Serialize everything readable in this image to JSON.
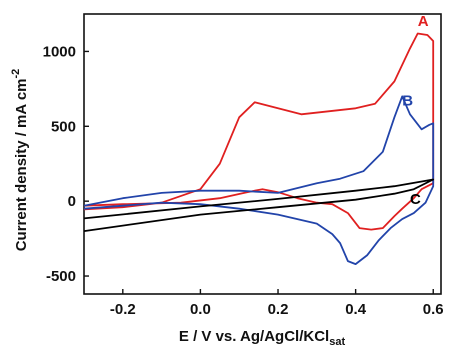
{
  "chart_data": {
    "type": "line",
    "title": "",
    "xlabel": "E / V vs. Ag/AgCl/KCl",
    "xlabel_sub": "sat",
    "ylabel": "Current density / mA cm",
    "ylabel_sup": "-2",
    "xlim": [
      -0.3,
      0.62
    ],
    "ylim": [
      -620,
      1250
    ],
    "xticks": [
      -0.2,
      0.0,
      0.2,
      0.4,
      0.6
    ],
    "xtick_labels": [
      "-0.2",
      "0.0",
      "0.2",
      "0.4",
      "0.6"
    ],
    "yticks": [
      -500,
      0,
      500,
      1000
    ],
    "ytick_labels": [
      "-500",
      "0",
      "500",
      "1000"
    ],
    "grid": false,
    "series": [
      {
        "name": "A",
        "color": "#e02020",
        "label_at": [
          0.56,
          1170
        ],
        "points": [
          [
            -0.3,
            -55
          ],
          [
            -0.2,
            -40
          ],
          [
            -0.1,
            -10
          ],
          [
            0.0,
            80
          ],
          [
            0.05,
            250
          ],
          [
            0.1,
            560
          ],
          [
            0.14,
            660
          ],
          [
            0.2,
            620
          ],
          [
            0.26,
            580
          ],
          [
            0.33,
            600
          ],
          [
            0.4,
            620
          ],
          [
            0.45,
            650
          ],
          [
            0.5,
            800
          ],
          [
            0.54,
            1020
          ],
          [
            0.56,
            1120
          ],
          [
            0.585,
            1110
          ],
          [
            0.6,
            1070
          ],
          [
            0.6,
            120
          ],
          [
            0.57,
            80
          ],
          [
            0.55,
            20
          ],
          [
            0.52,
            -50
          ],
          [
            0.5,
            -100
          ],
          [
            0.47,
            -180
          ],
          [
            0.44,
            -190
          ],
          [
            0.41,
            -180
          ],
          [
            0.38,
            -80
          ],
          [
            0.34,
            -20
          ],
          [
            0.3,
            -10
          ],
          [
            0.25,
            20
          ],
          [
            0.2,
            60
          ],
          [
            0.16,
            80
          ],
          [
            0.12,
            60
          ],
          [
            0.05,
            20
          ],
          [
            -0.05,
            -10
          ],
          [
            -0.2,
            -20
          ],
          [
            -0.3,
            -30
          ]
        ]
      },
      {
        "name": "B",
        "color": "#2244aa",
        "label_at": [
          0.52,
          640
        ],
        "points": [
          [
            -0.3,
            -30
          ],
          [
            -0.2,
            20
          ],
          [
            -0.1,
            55
          ],
          [
            0.0,
            70
          ],
          [
            0.1,
            70
          ],
          [
            0.2,
            55
          ],
          [
            0.3,
            120
          ],
          [
            0.36,
            150
          ],
          [
            0.42,
            200
          ],
          [
            0.47,
            330
          ],
          [
            0.5,
            560
          ],
          [
            0.52,
            700
          ],
          [
            0.54,
            580
          ],
          [
            0.57,
            480
          ],
          [
            0.59,
            510
          ],
          [
            0.6,
            520
          ],
          [
            0.6,
            100
          ],
          [
            0.58,
            -10
          ],
          [
            0.55,
            -80
          ],
          [
            0.52,
            -120
          ],
          [
            0.49,
            -180
          ],
          [
            0.46,
            -260
          ],
          [
            0.43,
            -360
          ],
          [
            0.4,
            -420
          ],
          [
            0.38,
            -400
          ],
          [
            0.36,
            -280
          ],
          [
            0.34,
            -220
          ],
          [
            0.3,
            -150
          ],
          [
            0.2,
            -90
          ],
          [
            0.1,
            -50
          ],
          [
            0.0,
            -20
          ],
          [
            -0.1,
            -10
          ],
          [
            -0.2,
            -30
          ],
          [
            -0.3,
            -50
          ]
        ]
      },
      {
        "name": "C",
        "color": "#000000",
        "label_at": [
          0.54,
          -20
        ],
        "points": [
          [
            -0.3,
            -115
          ],
          [
            0.0,
            -35
          ],
          [
            0.2,
            15
          ],
          [
            0.4,
            70
          ],
          [
            0.5,
            100
          ],
          [
            0.6,
            145
          ],
          [
            0.55,
            80
          ],
          [
            0.5,
            50
          ],
          [
            0.4,
            10
          ],
          [
            0.2,
            -40
          ],
          [
            0.0,
            -90
          ],
          [
            -0.3,
            -200
          ]
        ]
      }
    ]
  }
}
